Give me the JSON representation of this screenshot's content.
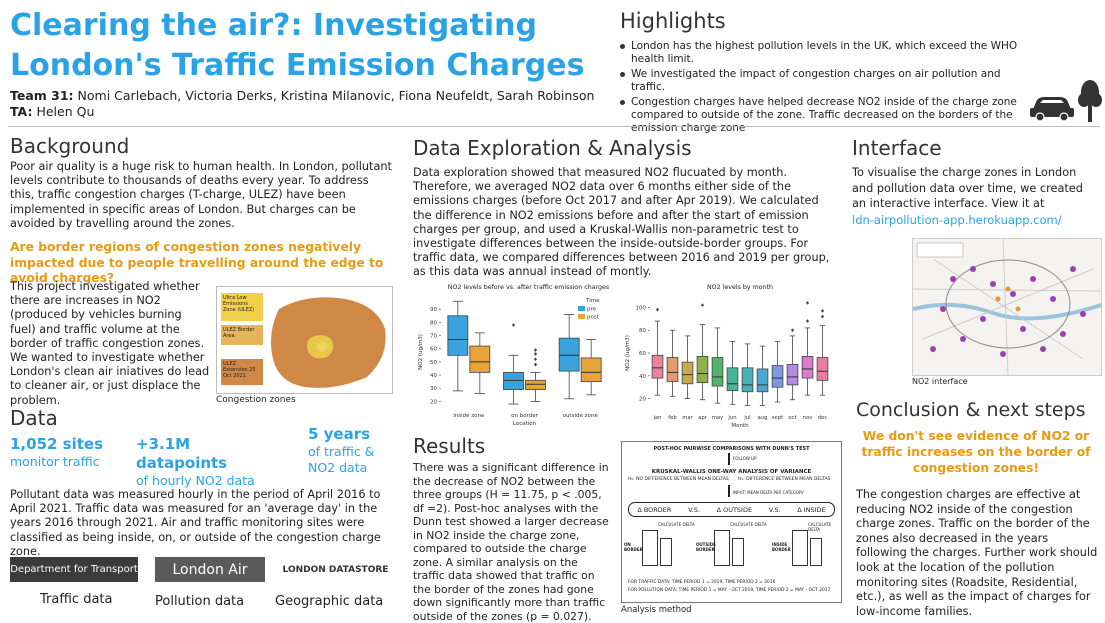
{
  "title": "Clearing the air?: Investigating London's Traffic Emission Charges",
  "team": {
    "label": "Team 31:",
    "members": "Nomi Carlebach, Victoria Derks, Kristina Milanovic, Fiona Neufeldt, Sarah Robinson",
    "ta_label": "TA:",
    "ta": "Helen Qu"
  },
  "highlights": {
    "heading": "Highlights",
    "items": [
      "London has the highest pollution levels in the UK, which exceed the WHO health limit.",
      "We investigated the impact of congestion charges on air pollution and traffic.",
      "Congestion charges have helped decrease NO2 inside of the charge zone compared to outside of the zone. Traffic decreased on the borders of the emission charge zone"
    ]
  },
  "background": {
    "heading": "Background",
    "text": "Poor air quality is a huge risk to human health. In London, pollutant levels contribute to thousands of deaths every year. To address this, traffic congestion charges (T-charge, ULEZ) have been implemented in specific areas of London. But charges can be avoided by travelling around the zones.",
    "question": "Are border regions of congestion zones negatively impacted due to people travelling around the edge to avoid charges?",
    "project": "This project investigated whether there are increases in NO2 (produced by vehicles burning fuel) and traffic volume at the border of traffic congestion zones. We wanted to investigate whether London's clean air iniatives do lead to cleaner air, or just displace the problem.",
    "map_legend": [
      "Ultra Low Emissions Zone (ULEZ)",
      "ULEZ Border Area",
      "ULEZ Extension 25 Oct 2021"
    ],
    "map_caption": "Congestion zones"
  },
  "data": {
    "heading": "Data",
    "stats": [
      {
        "big": "1,052 sites",
        "small": "monitor traffic"
      },
      {
        "big": "+3.1M datapoints",
        "small": "of hourly NO2 data"
      },
      {
        "big": "5 years",
        "small": "of traffic & NO2 data"
      }
    ],
    "text": "Pollutant data was measured hourly in the period of April 2016 to April 2021. Traffic data was measured for an 'average day' in the years 2016 through 2021. Air and traffic monitoring sites were classified as being inside, on, or outside of the congestion charge zone.",
    "logos": [
      "Department for Transport",
      "London Air",
      "LONDON DATASTORE"
    ],
    "logo_captions": [
      "Traffic data",
      "Pollution data",
      "Geographic data"
    ]
  },
  "exploration": {
    "heading": "Data Exploration & Analysis",
    "text": "Data exploration showed that measured NO2 flucuated by month. Therefore, we averaged NO2 data over 6 months either side of the emissions charges (before Oct 2017 and after Apr 2019). We calculated the difference in NO2 emissions before and after the start of emission charges per group, and used a Kruskal-Wallis non-parametric test to investigate differences between the inside-outside-border groups. For traffic data, we compared differences between 2016 and 2019 per group, as this data was annual instead of montly."
  },
  "chart_data": [
    {
      "type": "box",
      "title": "NO2 levels before vs. after traffic emission charges",
      "xlabel": "Location",
      "ylabel": "NO2 (ug/m3)",
      "ylim": [
        15,
        100
      ],
      "yticks": [
        20,
        30,
        40,
        50,
        60,
        70,
        80,
        90
      ],
      "categories": [
        "inside zone",
        "on border",
        "outside zone"
      ],
      "legend_title": "Time",
      "series": [
        {
          "name": "pre",
          "color": "#3aa3dc",
          "boxes": [
            {
              "min": 28,
              "q1": 55,
              "median": 67,
              "q3": 85,
              "max": 96,
              "outliers": []
            },
            {
              "min": 18,
              "q1": 29,
              "median": 36,
              "q3": 42,
              "max": 55,
              "outliers": [
                78
              ]
            },
            {
              "min": 22,
              "q1": 43,
              "median": 55,
              "q3": 68,
              "max": 86,
              "outliers": []
            }
          ]
        },
        {
          "name": "post",
          "color": "#e8a33a",
          "boxes": [
            {
              "min": 26,
              "q1": 42,
              "median": 50,
              "q3": 62,
              "max": 72,
              "outliers": []
            },
            {
              "min": 20,
              "q1": 29,
              "median": 33,
              "q3": 36,
              "max": 42,
              "outliers": [
                48,
                52,
                56,
                59
              ]
            },
            {
              "min": 25,
              "q1": 35,
              "median": 42,
              "q3": 53,
              "max": 67,
              "outliers": []
            }
          ]
        }
      ]
    },
    {
      "type": "box",
      "title": "NO2 levels by month",
      "xlabel": "Month",
      "ylabel": "NO2 (ug/m3)",
      "ylim": [
        10,
        110
      ],
      "yticks": [
        20,
        40,
        60,
        80,
        100
      ],
      "categories": [
        "jan",
        "feb",
        "mar",
        "apr",
        "may",
        "jun",
        "jul",
        "aug",
        "sept",
        "oct",
        "nov",
        "dec"
      ],
      "colors": [
        "#e9849a",
        "#e59a6c",
        "#c9a94a",
        "#8fb14d",
        "#57b36a",
        "#49b596",
        "#46b1b6",
        "#4aa7d2",
        "#7f98e0",
        "#b98ae0",
        "#dc7ccb",
        "#e77ca4"
      ],
      "boxes": [
        {
          "min": 23,
          "q1": 38,
          "median": 47,
          "q3": 58,
          "max": 88,
          "outliers": [
            98
          ]
        },
        {
          "min": 22,
          "q1": 35,
          "median": 43,
          "q3": 56,
          "max": 80,
          "outliers": []
        },
        {
          "min": 20,
          "q1": 33,
          "median": 41,
          "q3": 52,
          "max": 75,
          "outliers": []
        },
        {
          "min": 19,
          "q1": 34,
          "median": 42,
          "q3": 57,
          "max": 85,
          "outliers": [
            102
          ]
        },
        {
          "min": 16,
          "q1": 31,
          "median": 39,
          "q3": 56,
          "max": 82,
          "outliers": []
        },
        {
          "min": 15,
          "q1": 27,
          "median": 33,
          "q3": 47,
          "max": 70,
          "outliers": []
        },
        {
          "min": 14,
          "q1": 26,
          "median": 32,
          "q3": 47,
          "max": 68,
          "outliers": []
        },
        {
          "min": 14,
          "q1": 26,
          "median": 32,
          "q3": 46,
          "max": 66,
          "outliers": []
        },
        {
          "min": 17,
          "q1": 30,
          "median": 38,
          "q3": 49,
          "max": 70,
          "outliers": []
        },
        {
          "min": 19,
          "q1": 32,
          "median": 39,
          "q3": 50,
          "max": 75,
          "outliers": [
            80
          ]
        },
        {
          "min": 23,
          "q1": 38,
          "median": 46,
          "q3": 57,
          "max": 82,
          "outliers": [
            88,
            104
          ]
        },
        {
          "min": 23,
          "q1": 36,
          "median": 44,
          "q3": 56,
          "max": 84,
          "outliers": [
            92,
            97
          ]
        }
      ]
    }
  ],
  "results": {
    "heading": "Results",
    "text": "There was a significant difference in the decrease of NO2 between the three groups (H = 11.75, p < .005, df =2). Post-hoc analyses with the Dunn test showed a larger decrease in NO2 inside the charge zone, compared to outside the charge zone. A similar analysis on the traffic data showed that traffic on the border of the zones had gone down significantly more than traffic outside of the zones (p = 0.027).",
    "diagram": {
      "top": "POST-HOC PAIRWISE COMPARISONS WITH DUNN'S TEST",
      "follow": "FOLLOW UP",
      "kw": "KRUSKAL-WALLIS ONE-WAY ANALYSIS OF VARIANCE",
      "h0": "H₀: NO DIFFERENCE BETWEEN MEAN DELTAS",
      "h1": "H₁: DIFFERENCE BETWEEN MEAN DELTAS",
      "input": "INPUT: MEAN DELTA PER CATEGORY",
      "border": "Δ BORDER",
      "vs1": "V.S.",
      "outside": "Δ OUTSIDE",
      "vs2": "V.S.",
      "inside": "Δ INSIDE",
      "calc": "CALCULATE DELTA",
      "groups": [
        "ON BORDER",
        "OUTSIDE BORDER",
        "INSIDE BORDER"
      ],
      "footer1": "FOR TRAFFIC DATA: TIME PERIOD 1 = 2019, TIME PERIOD 2 = 2016",
      "footer2": "FOR POLLUTION DATA: TIME PERIOD 1 = MAY - OCT 2019, TIME PERIOD 2 = MAY - OCT 2017"
    },
    "diagram_caption": "Analysis method"
  },
  "interface": {
    "heading": "Interface",
    "text": "To visualise the charge zones in London and pollution data over time, we created an interactive interface. View it at",
    "link": "ldn-airpollution-app.herokuapp.com/",
    "caption": "NO2 interface"
  },
  "conclusion": {
    "heading": "Conclusion & next steps",
    "highlight": "We don't see evidence of NO2 or traffic increases on the border of congestion zones!",
    "text": "The congestion charges are effective at reducing NO2 inside of the congestion charge zones. Traffic on the border of the zones also decreased in the years following the charges. Further work should look at the location of the pollution monitoring sites (Roadsite, Residential, etc.), as well as the impact of charges for low-income families."
  },
  "colors": {
    "accent_blue": "#2aa3e6",
    "accent_orange": "#e89a12",
    "pre": "#3aa3dc",
    "post": "#e8a33a"
  }
}
